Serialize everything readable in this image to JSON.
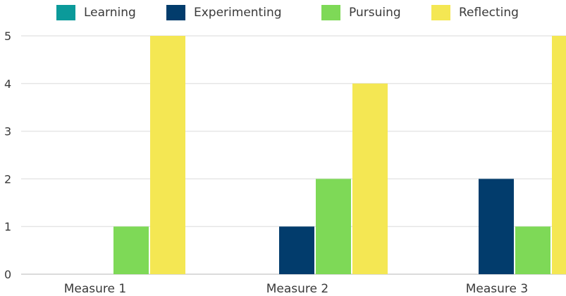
{
  "chart_data": {
    "type": "bar",
    "categories": [
      "Measure 1",
      "Measure 2",
      "Measure 3"
    ],
    "series": [
      {
        "name": "Learning",
        "color": "#0b9a9a",
        "values": [
          0,
          0,
          0
        ]
      },
      {
        "name": "Experimenting",
        "color": "#023c6c",
        "values": [
          0,
          1,
          2
        ]
      },
      {
        "name": "Pursuing",
        "color": "#7ed957",
        "values": [
          1,
          2,
          1
        ]
      },
      {
        "name": "Reflecting",
        "color": "#f4e753",
        "values": [
          5,
          4,
          5
        ]
      }
    ],
    "ylim": [
      0,
      5
    ],
    "yticks": [
      "0",
      "1",
      "2",
      "3",
      "4",
      "5"
    ],
    "grid": true,
    "legend_position": "top",
    "title": "",
    "xlabel": "",
    "ylabel": ""
  }
}
